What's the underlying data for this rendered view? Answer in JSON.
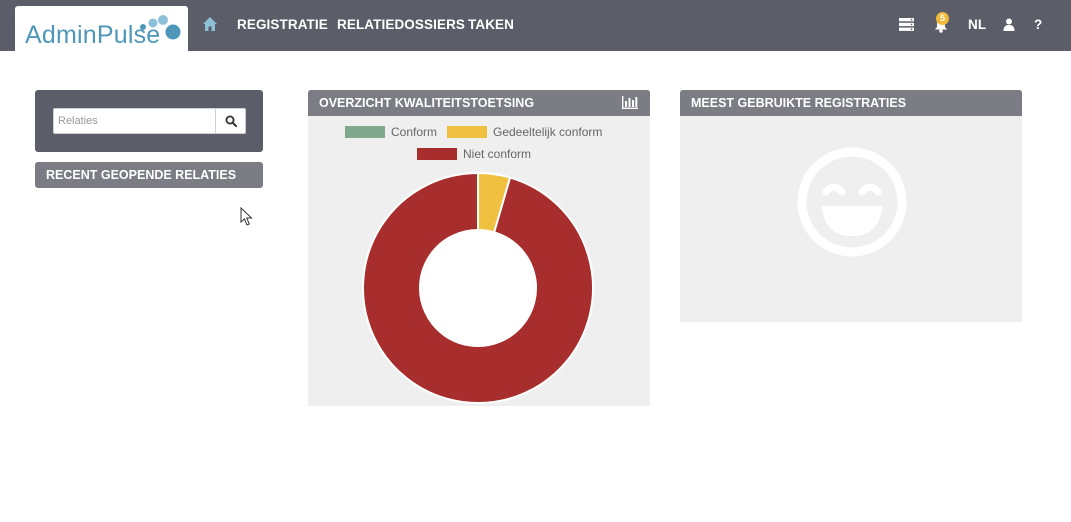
{
  "app": {
    "logo_text": "AdminPulse"
  },
  "nav": {
    "items": [
      {
        "label": "REGISTRATIE"
      },
      {
        "label": "RELATIEDOSSIERS"
      },
      {
        "label": "TAKEN"
      }
    ],
    "notification_count": "5",
    "language": "NL",
    "help": "?"
  },
  "search": {
    "placeholder": "Relaties",
    "value": ""
  },
  "recent": {
    "title": "RECENT GEOPENDE RELATIES"
  },
  "quality": {
    "title": "OVERZICHT KWALITEITSTOETSING"
  },
  "chart_data": {
    "type": "pie",
    "donut": true,
    "title": "OVERZICHT KWALITEITSTOETSING",
    "legend_position": "top",
    "series": [
      {
        "name": "Conform",
        "value": 0,
        "color": "#7fa88e"
      },
      {
        "name": "Gedeeltelijk conform",
        "value": 4.5,
        "color": "#f0c040"
      },
      {
        "name": "Niet conform",
        "value": 95.5,
        "color": "#a82e2e"
      }
    ]
  },
  "registrations": {
    "title": "MEEST GEBRUIKTE REGISTRATIES",
    "empty_icon": "smiley-icon"
  },
  "colors": {
    "topbar": "#5b5e68",
    "panel_header": "#7b7c84",
    "panel_body": "#efefef",
    "logo": "#4f97b9",
    "badge": "#f0b93a"
  }
}
